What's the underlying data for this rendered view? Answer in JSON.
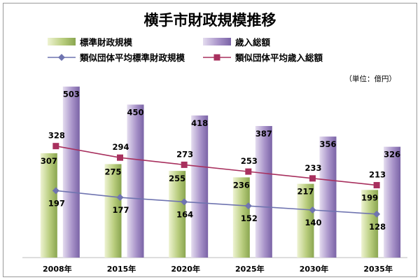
{
  "chart_data": {
    "type": "bar",
    "title": "横手市財政規模推移",
    "unit": "（単位：億円）",
    "categories": [
      "2008年",
      "2015年",
      "2020年",
      "2025年",
      "2030年",
      "2035年"
    ],
    "ylim": [
      0,
      560
    ],
    "legend_position": "top",
    "grid": false,
    "series": [
      {
        "name": "標準財政規模",
        "type": "bar",
        "values": [
          307,
          275,
          255,
          236,
          217,
          199
        ],
        "color": "#b5c97a"
      },
      {
        "name": "歳入総額",
        "type": "bar",
        "values": [
          503,
          450,
          418,
          387,
          356,
          326
        ],
        "color": "#a08cc3"
      },
      {
        "name": "類似団体平均標準財政規模",
        "type": "line",
        "values": [
          197,
          177,
          164,
          152,
          140,
          128
        ],
        "color": "#6f74b0",
        "marker": "diamond"
      },
      {
        "name": "類似団体平均歳入総額",
        "type": "line",
        "values": [
          328,
          294,
          273,
          253,
          233,
          213
        ],
        "color": "#a8305e",
        "marker": "square"
      }
    ]
  }
}
